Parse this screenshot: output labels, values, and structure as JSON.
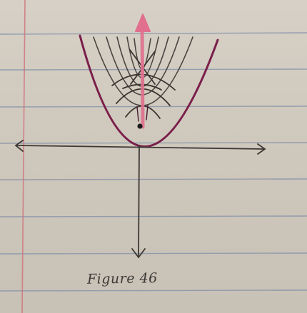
{
  "caption": "Figure 46",
  "colors": {
    "paper": "#cfc8bc",
    "rule_line": "#7f8fa8",
    "margin_line": "#d0707a",
    "pencil": "#4a4440",
    "outer_parabola": "#7a1e4a",
    "arrow": "#e0708e",
    "dot": "#1a1a1a"
  }
}
